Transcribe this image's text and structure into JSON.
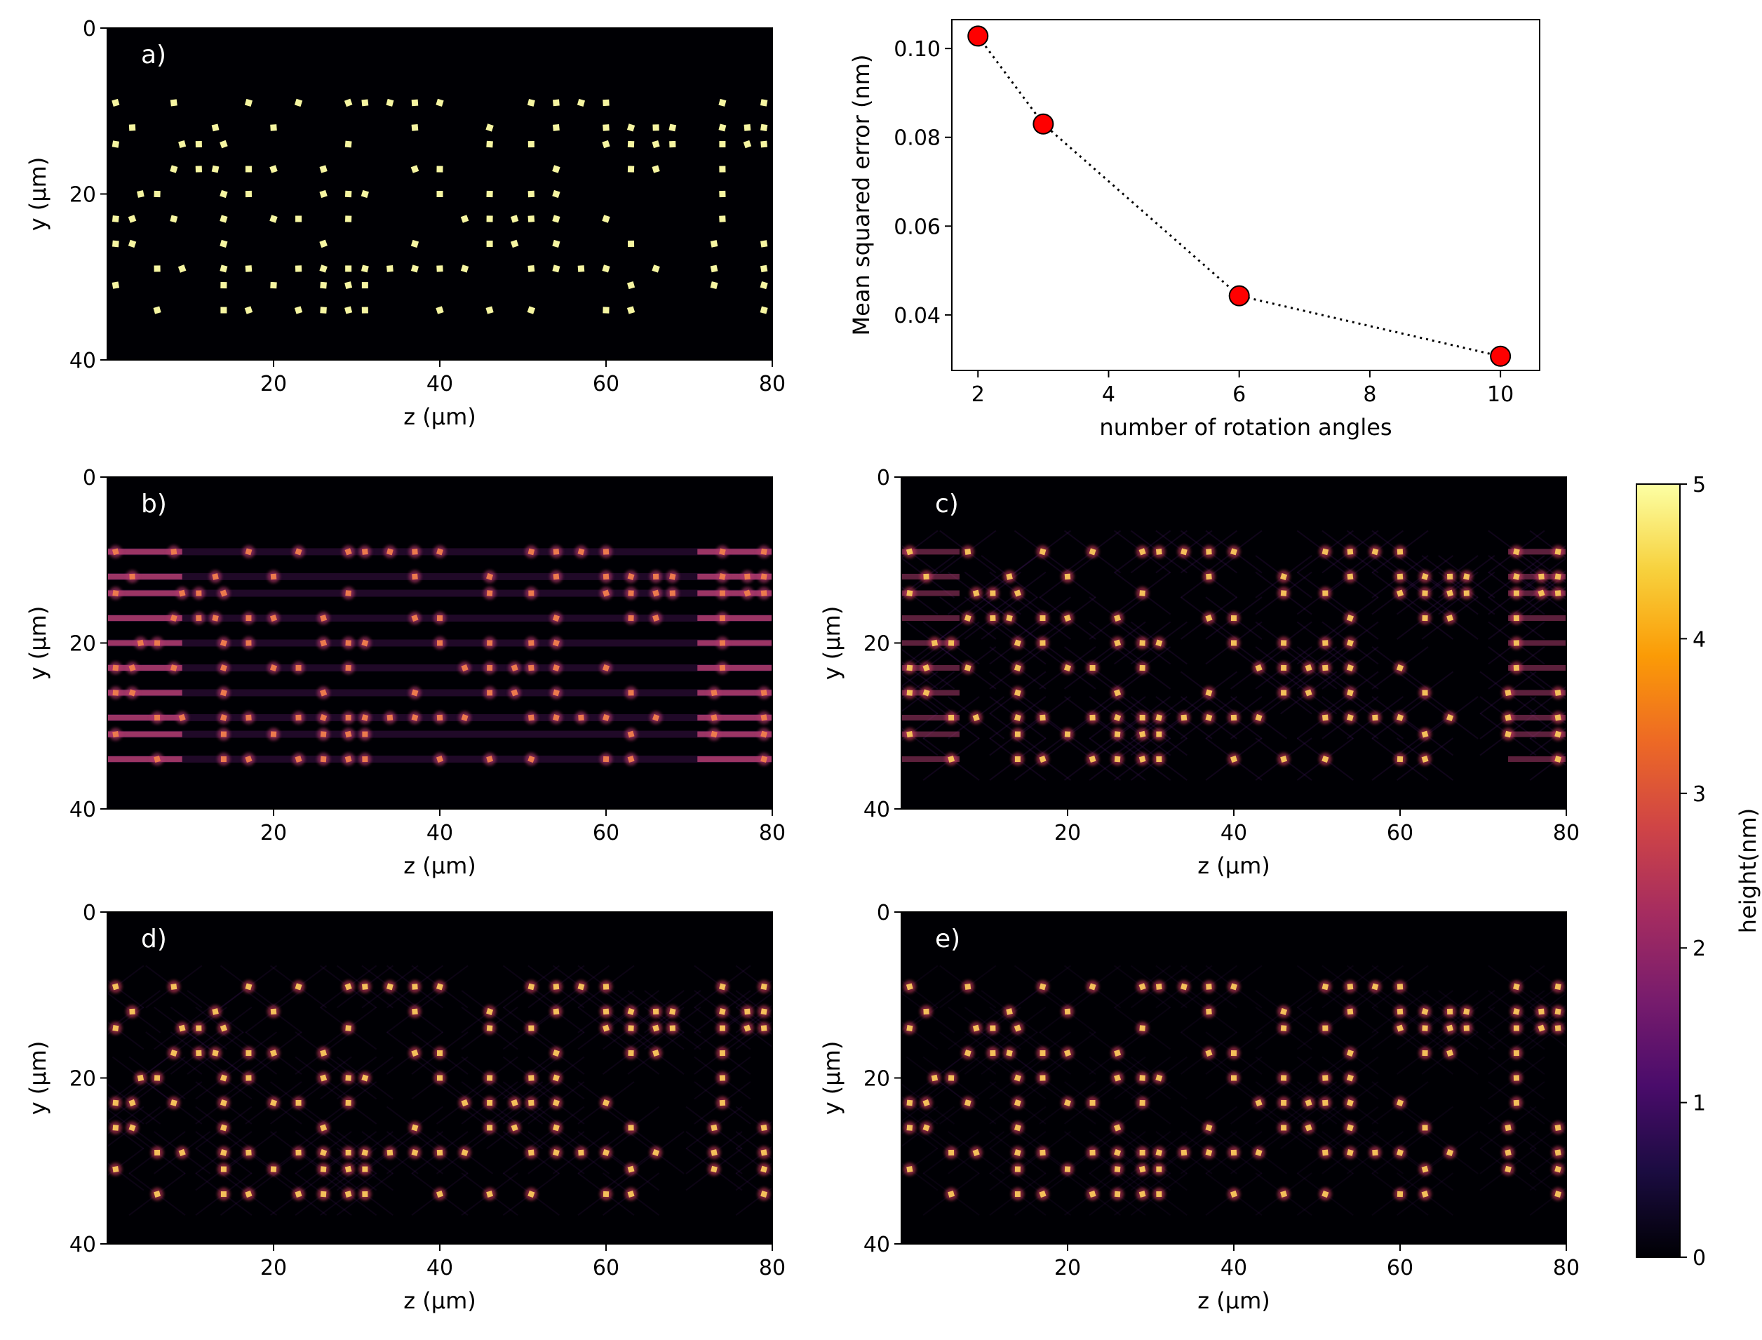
{
  "colorbar": {
    "label": "height(nm)",
    "min": 0,
    "max": 5,
    "ticks": [
      "0",
      "1",
      "2",
      "3",
      "4",
      "5"
    ],
    "colormap": "inferno",
    "stops": [
      "#000004",
      "#1b0c41",
      "#4a0c6b",
      "#781c6d",
      "#a52c60",
      "#cf4446",
      "#ed6925",
      "#fb9b06",
      "#f7d13d",
      "#fcffa4"
    ]
  },
  "image_panels": [
    {
      "label": "a)",
      "xlabel": "z (µm)",
      "ylabel": "y (µm)",
      "xticks": [
        "20",
        "40",
        "60",
        "80"
      ],
      "yticks": [
        "0",
        "20",
        "40"
      ],
      "x_range": [
        0,
        80
      ],
      "y_range": [
        0,
        40
      ],
      "style": "clean"
    },
    {
      "label": "b)",
      "xlabel": "z (µm)",
      "ylabel": "y (µm)",
      "xticks": [
        "20",
        "40",
        "60",
        "80"
      ],
      "yticks": [
        "0",
        "20",
        "40"
      ],
      "x_range": [
        0,
        80
      ],
      "y_range": [
        0,
        40
      ],
      "style": "streaks"
    },
    {
      "label": "c)",
      "xlabel": "z (µm)",
      "ylabel": "y (µm)",
      "xticks": [
        "20",
        "40",
        "60",
        "80"
      ],
      "yticks": [
        "0",
        "20",
        "40"
      ],
      "x_range": [
        0,
        80
      ],
      "y_range": [
        0,
        40
      ],
      "style": "medium"
    },
    {
      "label": "d)",
      "xlabel": "z (µm)",
      "ylabel": "y (µm)",
      "xticks": [
        "20",
        "40",
        "60",
        "80"
      ],
      "yticks": [
        "0",
        "20",
        "40"
      ],
      "x_range": [
        0,
        80
      ],
      "y_range": [
        0,
        40
      ],
      "style": "fine"
    },
    {
      "label": "e)",
      "xlabel": "z (µm)",
      "ylabel": "y (µm)",
      "xticks": [
        "20",
        "40",
        "60",
        "80"
      ],
      "yticks": [
        "0",
        "20",
        "40"
      ],
      "x_range": [
        0,
        80
      ],
      "y_range": [
        0,
        40
      ],
      "style": "finest"
    }
  ],
  "chart_data": {
    "type": "line",
    "xlabel": "number of rotation angles",
    "ylabel": "Mean squared error (nm)",
    "x": [
      2,
      3,
      6,
      10
    ],
    "y": [
      0.1028,
      0.083,
      0.0443,
      0.0307
    ],
    "xlim": [
      1.6,
      10.6
    ],
    "ylim": [
      0.0275,
      0.1065
    ],
    "xticks": [
      "2",
      "4",
      "6",
      "8",
      "10"
    ],
    "xtick_values": [
      2,
      4,
      6,
      8,
      10
    ],
    "yticks": [
      "0.04",
      "0.06",
      "0.08",
      "0.10"
    ],
    "ytick_values": [
      0.04,
      0.06,
      0.08,
      0.1
    ],
    "line_style": "dotted",
    "line_color": "#000000",
    "marker_color": "#ff0000",
    "marker_edge": "#000000"
  },
  "scatterer_positions": [
    [
      1,
      9
    ],
    [
      3,
      12
    ],
    [
      1,
      14
    ],
    [
      8,
      9
    ],
    [
      9,
      14
    ],
    [
      8,
      17
    ],
    [
      4,
      20
    ],
    [
      6,
      20
    ],
    [
      1,
      23
    ],
    [
      3,
      23
    ],
    [
      8,
      23
    ],
    [
      1,
      26
    ],
    [
      3,
      26
    ],
    [
      6,
      29
    ],
    [
      9,
      29
    ],
    [
      1,
      31
    ],
    [
      6,
      34
    ],
    [
      11,
      14
    ],
    [
      11,
      17
    ],
    [
      13,
      12
    ],
    [
      13,
      17
    ],
    [
      14,
      14
    ],
    [
      14,
      20
    ],
    [
      14,
      23
    ],
    [
      14,
      26
    ],
    [
      14,
      29
    ],
    [
      14,
      31
    ],
    [
      14,
      34
    ],
    [
      17,
      9
    ],
    [
      17,
      17
    ],
    [
      17,
      20
    ],
    [
      17,
      29
    ],
    [
      17,
      34
    ],
    [
      20,
      12
    ],
    [
      20,
      17
    ],
    [
      20,
      23
    ],
    [
      20,
      31
    ],
    [
      23,
      9
    ],
    [
      23,
      23
    ],
    [
      23,
      29
    ],
    [
      23,
      34
    ],
    [
      26,
      17
    ],
    [
      26,
      20
    ],
    [
      26,
      26
    ],
    [
      26,
      29
    ],
    [
      26,
      31
    ],
    [
      26,
      34
    ],
    [
      29,
      9
    ],
    [
      29,
      14
    ],
    [
      29,
      20
    ],
    [
      29,
      23
    ],
    [
      29,
      29
    ],
    [
      29,
      31
    ],
    [
      29,
      34
    ],
    [
      31,
      9
    ],
    [
      31,
      20
    ],
    [
      31,
      29
    ],
    [
      31,
      31
    ],
    [
      31,
      34
    ],
    [
      34,
      9
    ],
    [
      34,
      29
    ],
    [
      37,
      9
    ],
    [
      37,
      12
    ],
    [
      37,
      17
    ],
    [
      37,
      26
    ],
    [
      37,
      29
    ],
    [
      40,
      9
    ],
    [
      40,
      17
    ],
    [
      40,
      20
    ],
    [
      40,
      29
    ],
    [
      40,
      34
    ],
    [
      43,
      23
    ],
    [
      43,
      29
    ],
    [
      46,
      12
    ],
    [
      46,
      14
    ],
    [
      46,
      20
    ],
    [
      46,
      23
    ],
    [
      46,
      26
    ],
    [
      46,
      34
    ],
    [
      49,
      23
    ],
    [
      49,
      26
    ],
    [
      51,
      9
    ],
    [
      51,
      14
    ],
    [
      51,
      20
    ],
    [
      51,
      23
    ],
    [
      51,
      29
    ],
    [
      51,
      34
    ],
    [
      54,
      9
    ],
    [
      54,
      12
    ],
    [
      54,
      17
    ],
    [
      54,
      20
    ],
    [
      54,
      23
    ],
    [
      54,
      26
    ],
    [
      54,
      29
    ],
    [
      57,
      9
    ],
    [
      57,
      29
    ],
    [
      60,
      9
    ],
    [
      60,
      12
    ],
    [
      60,
      14
    ],
    [
      60,
      23
    ],
    [
      60,
      29
    ],
    [
      60,
      34
    ],
    [
      63,
      12
    ],
    [
      63,
      14
    ],
    [
      63,
      17
    ],
    [
      63,
      26
    ],
    [
      63,
      31
    ],
    [
      63,
      34
    ],
    [
      66,
      12
    ],
    [
      66,
      14
    ],
    [
      66,
      17
    ],
    [
      66,
      29
    ],
    [
      68,
      12
    ],
    [
      68,
      14
    ],
    [
      73,
      26
    ],
    [
      73,
      29
    ],
    [
      73,
      31
    ],
    [
      74,
      9
    ],
    [
      74,
      12
    ],
    [
      74,
      14
    ],
    [
      74,
      17
    ],
    [
      74,
      20
    ],
    [
      74,
      23
    ],
    [
      77,
      12
    ],
    [
      77,
      14
    ],
    [
      79,
      9
    ],
    [
      79,
      12
    ],
    [
      79,
      14
    ],
    [
      79,
      26
    ],
    [
      79,
      29
    ],
    [
      79,
      31
    ],
    [
      79,
      34
    ]
  ]
}
